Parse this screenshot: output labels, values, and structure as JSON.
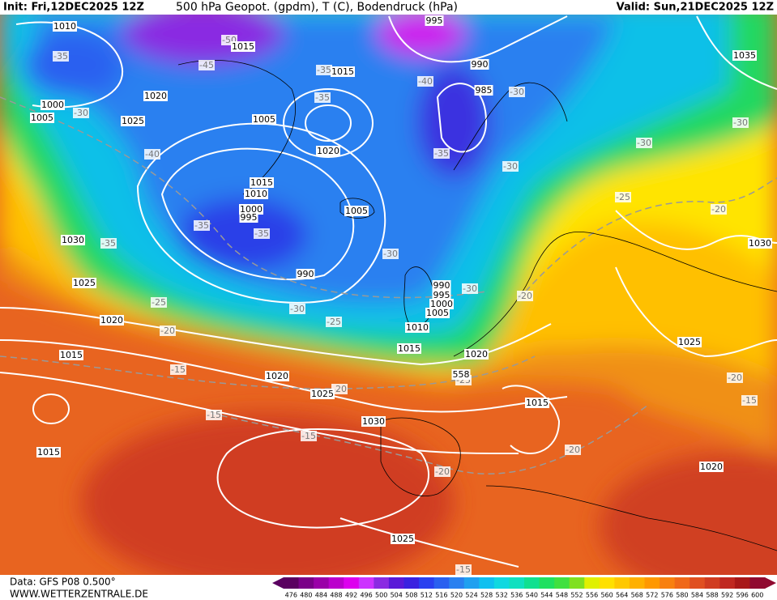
{
  "header": {
    "init": "Init: Fri,12DEC2025 12Z",
    "title": "500 hPa Geopot. (gpdm), T (C), Bodendruck (hPa)",
    "valid": "Valid: Sun,21DEC2025 12Z"
  },
  "footer": {
    "data": "Data: GFS P08 0.500°",
    "site": "WWW.WETTERZENTRALE.DE"
  },
  "colorbar": {
    "labels": [
      "476",
      "480",
      "484",
      "488",
      "492",
      "496",
      "500",
      "504",
      "508",
      "512",
      "516",
      "520",
      "524",
      "528",
      "532",
      "536",
      "540",
      "544",
      "548",
      "552",
      "556",
      "560",
      "564",
      "568",
      "572",
      "576",
      "580",
      "584",
      "588",
      "592",
      "596",
      "600"
    ],
    "colors": [
      "#5a0060",
      "#7a0088",
      "#9a00a8",
      "#bb00cc",
      "#dd00ee",
      "#cc33ff",
      "#8a2be2",
      "#5a1ad8",
      "#3a22e0",
      "#2a40f0",
      "#2a60f0",
      "#2a80f0",
      "#20a0f0",
      "#10c0f0",
      "#10d8e0",
      "#10e0c0",
      "#10e090",
      "#20e060",
      "#40e040",
      "#80e020",
      "#e0f000",
      "#ffe000",
      "#ffc800",
      "#ffb000",
      "#ff9800",
      "#f88010",
      "#f06818",
      "#e05020",
      "#d03c20",
      "#c02820",
      "#a81818",
      "#900a30"
    ]
  },
  "isobar_labels": [
    "1010",
    "1015",
    "995",
    "990",
    "985",
    "1035",
    "1015",
    "1000",
    "1005",
    "1020",
    "1025",
    "1005",
    "1020",
    "1015",
    "1010",
    "1000",
    "995",
    "1005",
    "1030",
    "990",
    "1025",
    "1030",
    "990",
    "995",
    "1000",
    "1005",
    "1010",
    "1015",
    "1020",
    "1020",
    "1015",
    "1020",
    "1025",
    "1030",
    "1015",
    "1025",
    "1020",
    "1015",
    "1025",
    "558"
  ],
  "temperature_labels": [
    "-35",
    "-45",
    "-50",
    "-35",
    "-40",
    "-30",
    "-35",
    "-30",
    "-40",
    "-35",
    "-30",
    "-30",
    "-30",
    "-25",
    "-20",
    "-35",
    "-35",
    "-35",
    "-30",
    "-30",
    "-20",
    "-25",
    "-30",
    "-25",
    "-20",
    "-15",
    "-25",
    "-20",
    "-15",
    "-15",
    "-20",
    "-20",
    "-20",
    "-15",
    "-15"
  ]
}
